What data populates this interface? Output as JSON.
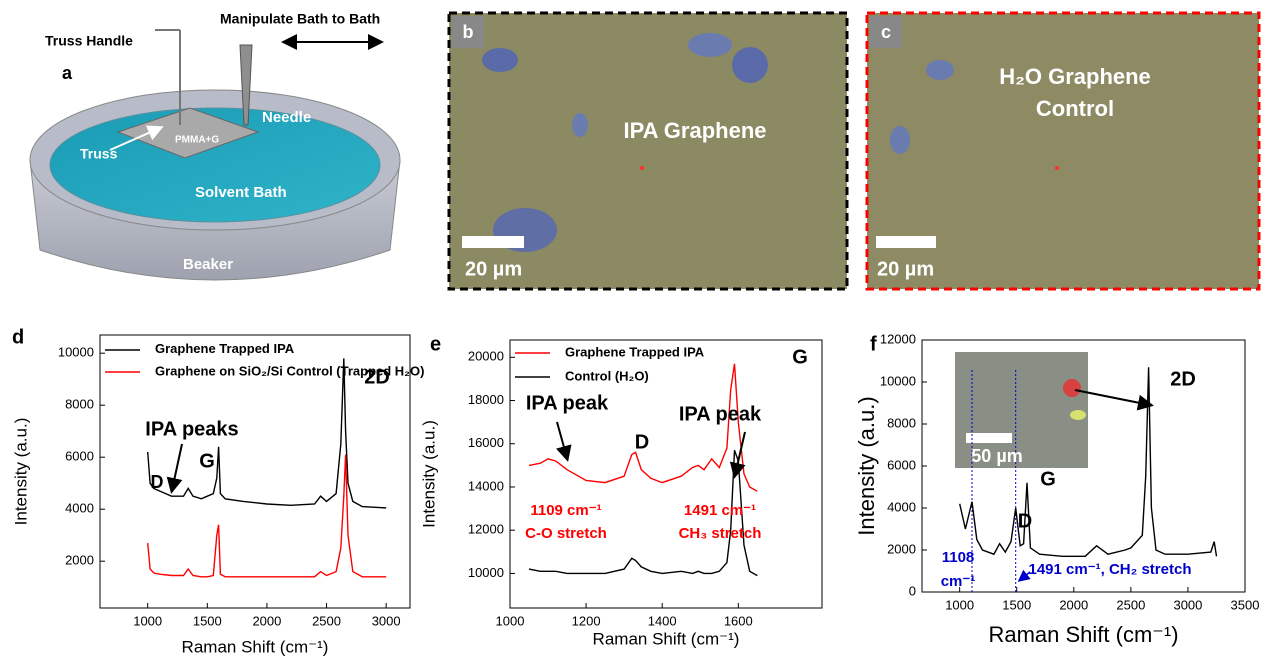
{
  "panel_a": {
    "label": "a",
    "truss_handle": "Truss Handle",
    "manipulate": "Manipulate Bath to Bath",
    "needle": "Needle",
    "pmma": "PMMA+G",
    "truss": "Truss",
    "solvent": "Solvent Bath",
    "beaker": "Beaker"
  },
  "panel_b": {
    "label": "b",
    "caption": "IPA Graphene",
    "scale": "20 µm"
  },
  "panel_c": {
    "label": "c",
    "caption_1": "H₂O Graphene",
    "caption_2": "Control",
    "scale": "20 µm"
  },
  "chart_data": [
    {
      "type": "line",
      "label": "d",
      "ylabel": "Intensity (a.u.)",
      "xlabel": "Raman Shift (cm⁻¹)",
      "x": [
        1000,
        1020,
        1050,
        1100,
        1200,
        1300,
        1340,
        1380,
        1450,
        1500,
        1550,
        1580,
        1595,
        1610,
        1650,
        1800,
        2000,
        2200,
        2400,
        2450,
        2500,
        2580,
        2620,
        2645,
        2660,
        2680,
        2720,
        2800,
        3000
      ],
      "series": [
        {
          "name": "Graphene Trapped IPA",
          "color": "#000000",
          "values": [
            6200,
            5000,
            4800,
            4700,
            4500,
            4500,
            4800,
            4500,
            4400,
            4500,
            4600,
            5200,
            6400,
            4600,
            4400,
            4300,
            4200,
            4150,
            4200,
            4500,
            4300,
            4600,
            6500,
            9800,
            7000,
            5000,
            4300,
            4100,
            4050
          ]
        },
        {
          "name": "Graphene on SiO₂/Si Control (Trapped H₂O)",
          "color": "#ff0000",
          "values": [
            2700,
            1700,
            1550,
            1500,
            1450,
            1450,
            1700,
            1450,
            1400,
            1400,
            1450,
            3000,
            3400,
            1500,
            1400,
            1400,
            1400,
            1400,
            1400,
            1600,
            1450,
            1600,
            2500,
            4500,
            6100,
            3000,
            1600,
            1400,
            1400
          ]
        }
      ],
      "xlim": [
        600,
        3200
      ],
      "ylim": [
        200,
        10700
      ],
      "xticks": [
        1000,
        1500,
        2000,
        2500,
        3000
      ],
      "yticks": [
        2000,
        4000,
        6000,
        8000,
        10000
      ],
      "annotations": [
        {
          "text": "2D",
          "color": "#000000"
        },
        {
          "text": "IPA peaks",
          "color": "#000000"
        },
        {
          "text": "D",
          "color": "#000000"
        },
        {
          "text": "G",
          "color": "#000000"
        }
      ]
    },
    {
      "type": "line",
      "label": "e",
      "ylabel": "Intensity (a.u.)",
      "xlabel": "Raman Shift (cm⁻¹)",
      "x": [
        1050,
        1080,
        1100,
        1120,
        1150,
        1200,
        1250,
        1300,
        1320,
        1330,
        1345,
        1370,
        1400,
        1450,
        1480,
        1495,
        1510,
        1530,
        1550,
        1570,
        1580,
        1590,
        1600,
        1615,
        1630,
        1650
      ],
      "series": [
        {
          "name": "Graphene Trapped IPA",
          "color": "#ff0000",
          "values": [
            15000,
            15100,
            15300,
            15200,
            14800,
            14300,
            14200,
            14500,
            15500,
            15600,
            14800,
            14400,
            14200,
            14500,
            14900,
            15000,
            14800,
            15300,
            14900,
            15800,
            18500,
            19700,
            17000,
            14600,
            14000,
            13800
          ]
        },
        {
          "name": "Control (H₂O)",
          "color": "#000000",
          "values": [
            10200,
            10100,
            10100,
            10100,
            10000,
            10000,
            10000,
            10200,
            10700,
            10600,
            10300,
            10100,
            10000,
            10100,
            10000,
            10100,
            10000,
            10000,
            10100,
            10500,
            12000,
            15700,
            15200,
            11300,
            10100,
            9900
          ]
        }
      ],
      "xlim": [
        1000,
        1820
      ],
      "ylim": [
        8400,
        20800
      ],
      "xticks": [
        1000,
        1200,
        1400,
        1600
      ],
      "yticks": [
        10000,
        12000,
        14000,
        16000,
        18000,
        20000
      ],
      "annotations": [
        {
          "text": "IPA peak",
          "color": "#000000"
        },
        {
          "text": "D",
          "color": "#000000"
        },
        {
          "text": "IPA peak",
          "color": "#000000"
        },
        {
          "text": "G",
          "color": "#000000"
        },
        {
          "text": "1109 cm⁻¹",
          "color": "#ff0000"
        },
        {
          "text": "C-O stretch",
          "color": "#ff0000"
        },
        {
          "text": "1491 cm⁻¹",
          "color": "#ff0000"
        },
        {
          "text": "CH₃ stretch",
          "color": "#ff0000"
        }
      ]
    },
    {
      "type": "line",
      "label": "f",
      "ylabel": "Intensity (a.u.)",
      "xlabel": "Raman Shift (cm⁻¹)",
      "x": [
        1000,
        1050,
        1108,
        1150,
        1200,
        1300,
        1350,
        1400,
        1450,
        1491,
        1530,
        1560,
        1590,
        1620,
        1700,
        1900,
        2100,
        2200,
        2300,
        2450,
        2500,
        2600,
        2630,
        2655,
        2680,
        2720,
        2800,
        3000,
        3200,
        3230,
        3250
      ],
      "series": [
        {
          "color": "#000000",
          "values": [
            4200,
            3000,
            4300,
            2500,
            2000,
            1800,
            2300,
            1900,
            2400,
            4000,
            2200,
            2300,
            5200,
            2100,
            1800,
            1700,
            1700,
            2200,
            1800,
            2000,
            2100,
            2700,
            5500,
            10700,
            4000,
            2000,
            1800,
            1800,
            1900,
            2400,
            1700
          ]
        }
      ],
      "xlim": [
        670,
        3500
      ],
      "ylim": [
        0,
        12000
      ],
      "xticks": [
        1000,
        1500,
        2000,
        2500,
        3000,
        3500
      ],
      "yticks": [
        0,
        2000,
        4000,
        6000,
        8000,
        10000,
        12000
      ],
      "vlines": [
        1108,
        1491
      ],
      "vline_color": "#0000cc",
      "annotations": [
        {
          "text": "2D",
          "color": "#000000"
        },
        {
          "text": "D",
          "color": "#000000"
        },
        {
          "text": "G",
          "color": "#000000"
        },
        {
          "text": "1108",
          "color": "#0000cc"
        },
        {
          "text": "cm⁻¹",
          "color": "#0000cc"
        },
        {
          "text": "1491 cm⁻¹, CH₂ stretch",
          "color": "#0000cc"
        },
        {
          "text": "50 µm",
          "color": "#ffffff"
        }
      ]
    }
  ]
}
